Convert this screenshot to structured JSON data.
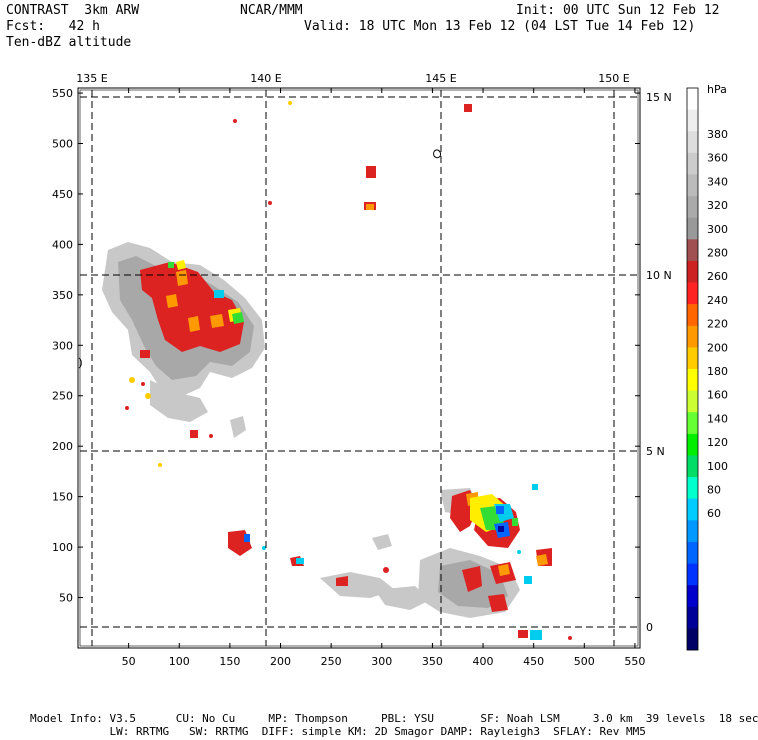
{
  "header": {
    "model": "CONTRAST  3km ARW",
    "center": "NCAR/MMM",
    "init": "Init: 00 UTC Sun 12 Feb 12",
    "fcst": "Fcst:   42 h",
    "valid": "Valid: 18 UTC Mon 13 Feb 12 (04 LST Tue 14 Feb 12)",
    "field": "Ten-dBZ altitude"
  },
  "chart_data": {
    "type": "heatmap",
    "title": "Ten-dBZ altitude",
    "x_ticks": [
      50,
      100,
      150,
      200,
      250,
      300,
      350,
      400,
      450,
      500,
      550
    ],
    "y_ticks": [
      50,
      100,
      150,
      200,
      250,
      300,
      350,
      400,
      450,
      500,
      550
    ],
    "xlim": [
      0,
      555
    ],
    "ylim": [
      0,
      555
    ],
    "lon_labels": [
      "135 E",
      "140 E",
      "145 E",
      "150 E"
    ],
    "lat_labels": [
      "15 N",
      "10 N",
      "5 N",
      "0"
    ],
    "colorbar_unit": "hPa",
    "colorbar_labels": [
      "380",
      "360",
      "340",
      "320",
      "300",
      "280",
      "260",
      "240",
      "220",
      "200",
      "180",
      "160",
      "140",
      "120",
      "100",
      "80",
      "60"
    ],
    "colorbar_colors": [
      "#ffffff",
      "#eeeeee",
      "#dddddd",
      "#cccccc",
      "#bbbbbb",
      "#aaaaaa",
      "#999999",
      "#a05050",
      "#cc2222",
      "#ff2222",
      "#ff6600",
      "#ff9900",
      "#ffcc00",
      "#ffff00",
      "#ccff33",
      "#66ff33",
      "#00ee00",
      "#00dd66",
      "#00ffcc",
      "#00ccff",
      "#0099ff",
      "#0066ff",
      "#0033ff",
      "#0000cc",
      "#000099",
      "#000066"
    ]
  },
  "footer": {
    "line1": "Model Info: V3.5      CU: No Cu     MP: Thompson     PBL: YSU       SF: Noah LSM     3.0 km  39 levels  18 sec",
    "line2": "            LW: RRTMG   SW: RRTMG  DIFF: simple KM: 2D Smagor DAMP: Rayleigh3  SFLAY: Rev MM5"
  }
}
